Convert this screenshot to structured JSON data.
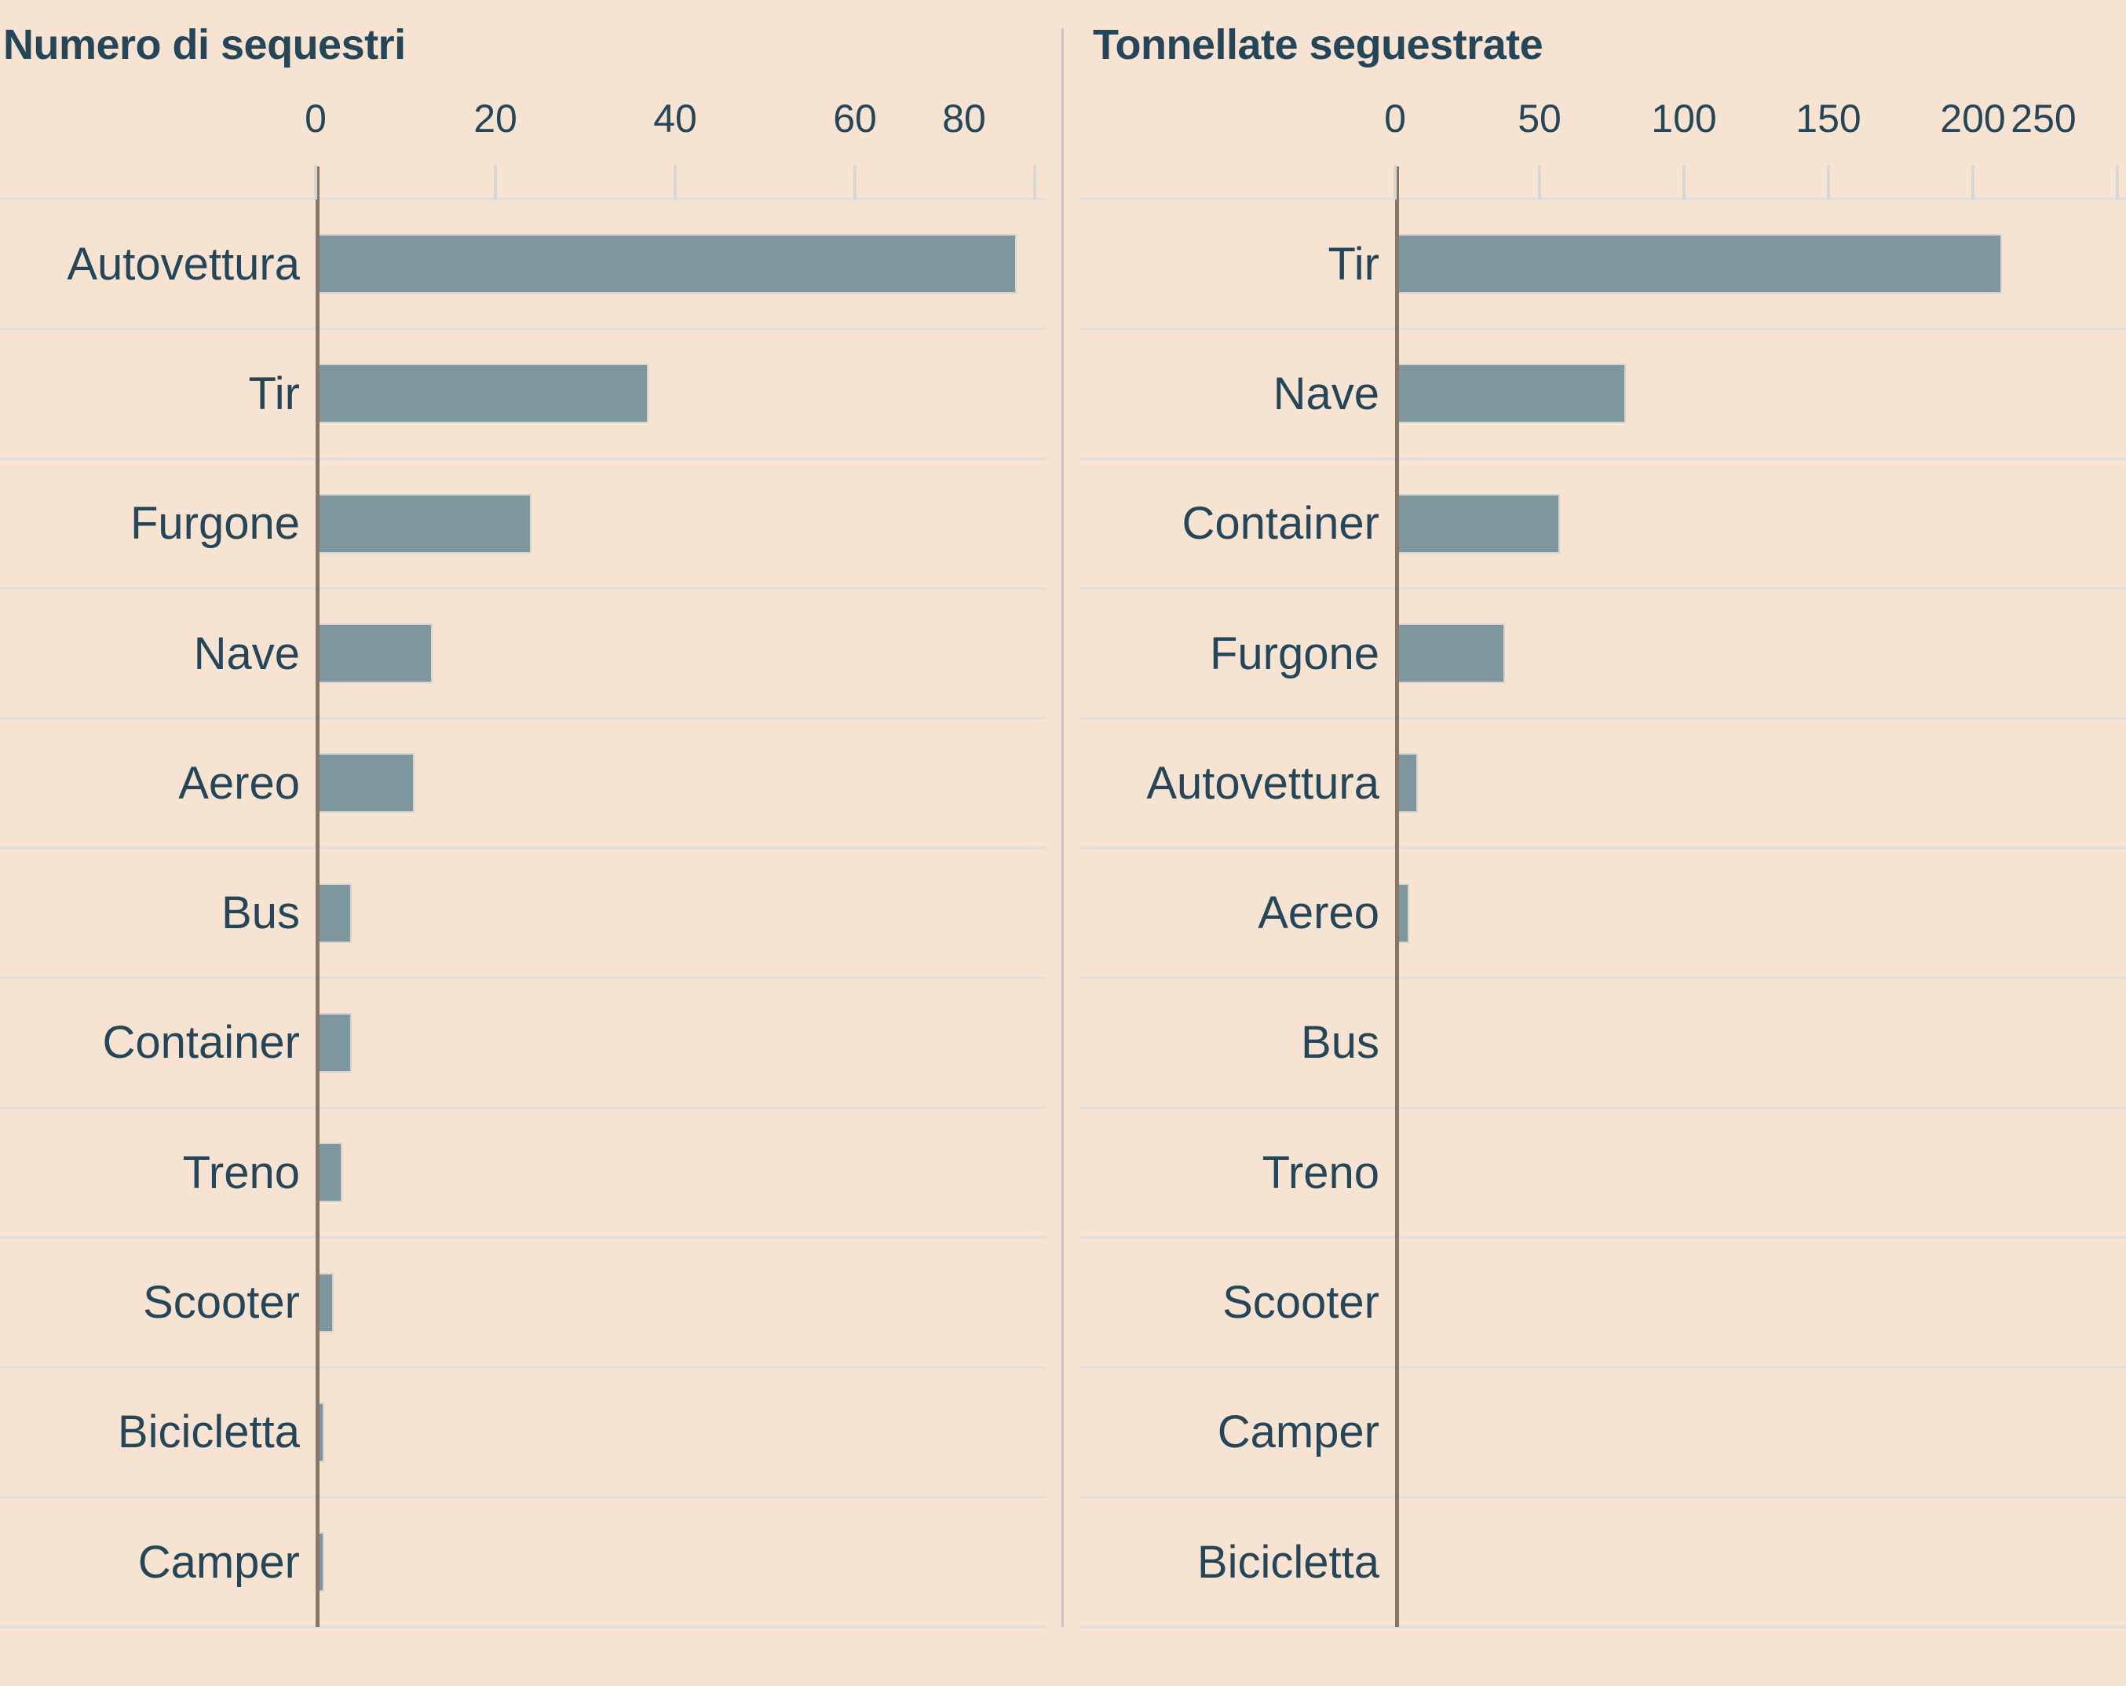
{
  "colors": {
    "background": "#f6e3d2",
    "bar_fill": "#7e969e",
    "bar_border": "#d6d4d1",
    "text": "#254559",
    "axis_line": "#8a7664",
    "gridline": "#e0dedc",
    "tick_mark": "#d9d7d4",
    "panel_divider": "#c8c5c2"
  },
  "chart_data": [
    {
      "type": "bar",
      "orientation": "horizontal",
      "title": "Numero di sequestri",
      "categories": [
        "Autovettura",
        "Tir",
        "Furgone",
        "Nave",
        "Aereo",
        "Bus",
        "Container",
        "Treno",
        "Scooter",
        "Bicicletta",
        "Camper"
      ],
      "values": [
        78,
        37,
        24,
        13,
        11,
        4,
        4,
        3,
        2,
        1,
        1
      ],
      "x_ticks": [
        0,
        20,
        40,
        60,
        80
      ],
      "xlim": [
        0,
        81
      ],
      "grid": "row-separators",
      "legend": "none",
      "bar_color": "#7e969e"
    },
    {
      "type": "bar",
      "orientation": "horizontal",
      "title": "Tonnellate seguestrate",
      "categories": [
        "Tir",
        "Nave",
        "Container",
        "Furgone",
        "Autovettura",
        "Aereo",
        "Bus",
        "Treno",
        "Scooter",
        "Camper",
        "Bicicletta"
      ],
      "values": [
        210,
        80,
        57,
        38,
        8,
        5,
        1,
        0,
        0,
        0,
        0
      ],
      "x_ticks": [
        0,
        50,
        100,
        150,
        200,
        250
      ],
      "xlim": [
        0,
        253
      ],
      "grid": "row-separators",
      "legend": "none",
      "bar_color": "#7e969e"
    }
  ]
}
